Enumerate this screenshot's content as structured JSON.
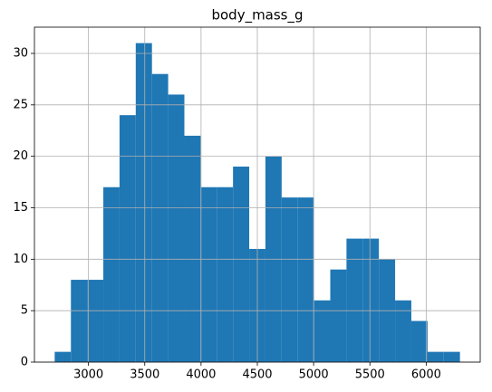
{
  "chart_data": {
    "type": "histogram",
    "title": "body_mass_g",
    "bins": [
      2700,
      2844,
      2988,
      3132,
      3276,
      3420,
      3564,
      3708,
      3852,
      3996,
      4140,
      4284,
      4428,
      4572,
      4716,
      4860,
      5004,
      5148,
      5292,
      5436,
      5580,
      5724,
      5868,
      6012,
      6156,
      6300
    ],
    "values": [
      1,
      8,
      8,
      17,
      24,
      31,
      28,
      26,
      22,
      17,
      17,
      19,
      11,
      20,
      16,
      16,
      6,
      9,
      12,
      12,
      10,
      6,
      4,
      1,
      1
    ],
    "color": "#1f77b4",
    "xlim": [
      2520,
      6480
    ],
    "xticks": [
      3000,
      3500,
      4000,
      4500,
      5000,
      5500,
      6000
    ],
    "ylim": [
      0,
      32.55
    ],
    "yticks": [
      0,
      5,
      10,
      15,
      20,
      25,
      30
    ],
    "grid": true
  }
}
